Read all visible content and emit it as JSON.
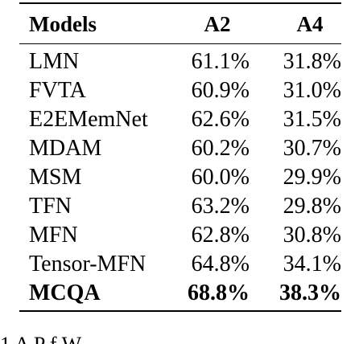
{
  "table": {
    "headers": [
      "Models",
      "A2",
      "A4"
    ],
    "rows": [
      {
        "model": "LMN",
        "a2": "61.1%",
        "a4": "31.8%"
      },
      {
        "model": "FVTA",
        "a2": "60.9%",
        "a4": "31.0%"
      },
      {
        "model": "E2EMemNet",
        "a2": "62.6%",
        "a4": "31.5%"
      },
      {
        "model": "MDAM",
        "a2": "60.2%",
        "a4": "30.7%"
      },
      {
        "model": "MSM",
        "a2": "60.0%",
        "a4": "29.9%"
      },
      {
        "model": "TFN",
        "a2": "63.2%",
        "a4": "29.8%"
      },
      {
        "model": "MFN",
        "a2": "62.8%",
        "a4": "30.8%"
      },
      {
        "model": "Tensor-MFN",
        "a2": "64.8%",
        "a4": "34.1%"
      },
      {
        "model": "MCQA",
        "a2": "68.8%",
        "a4": "38.3%"
      }
    ]
  },
  "caption_partial": "1   A           P f             W"
}
